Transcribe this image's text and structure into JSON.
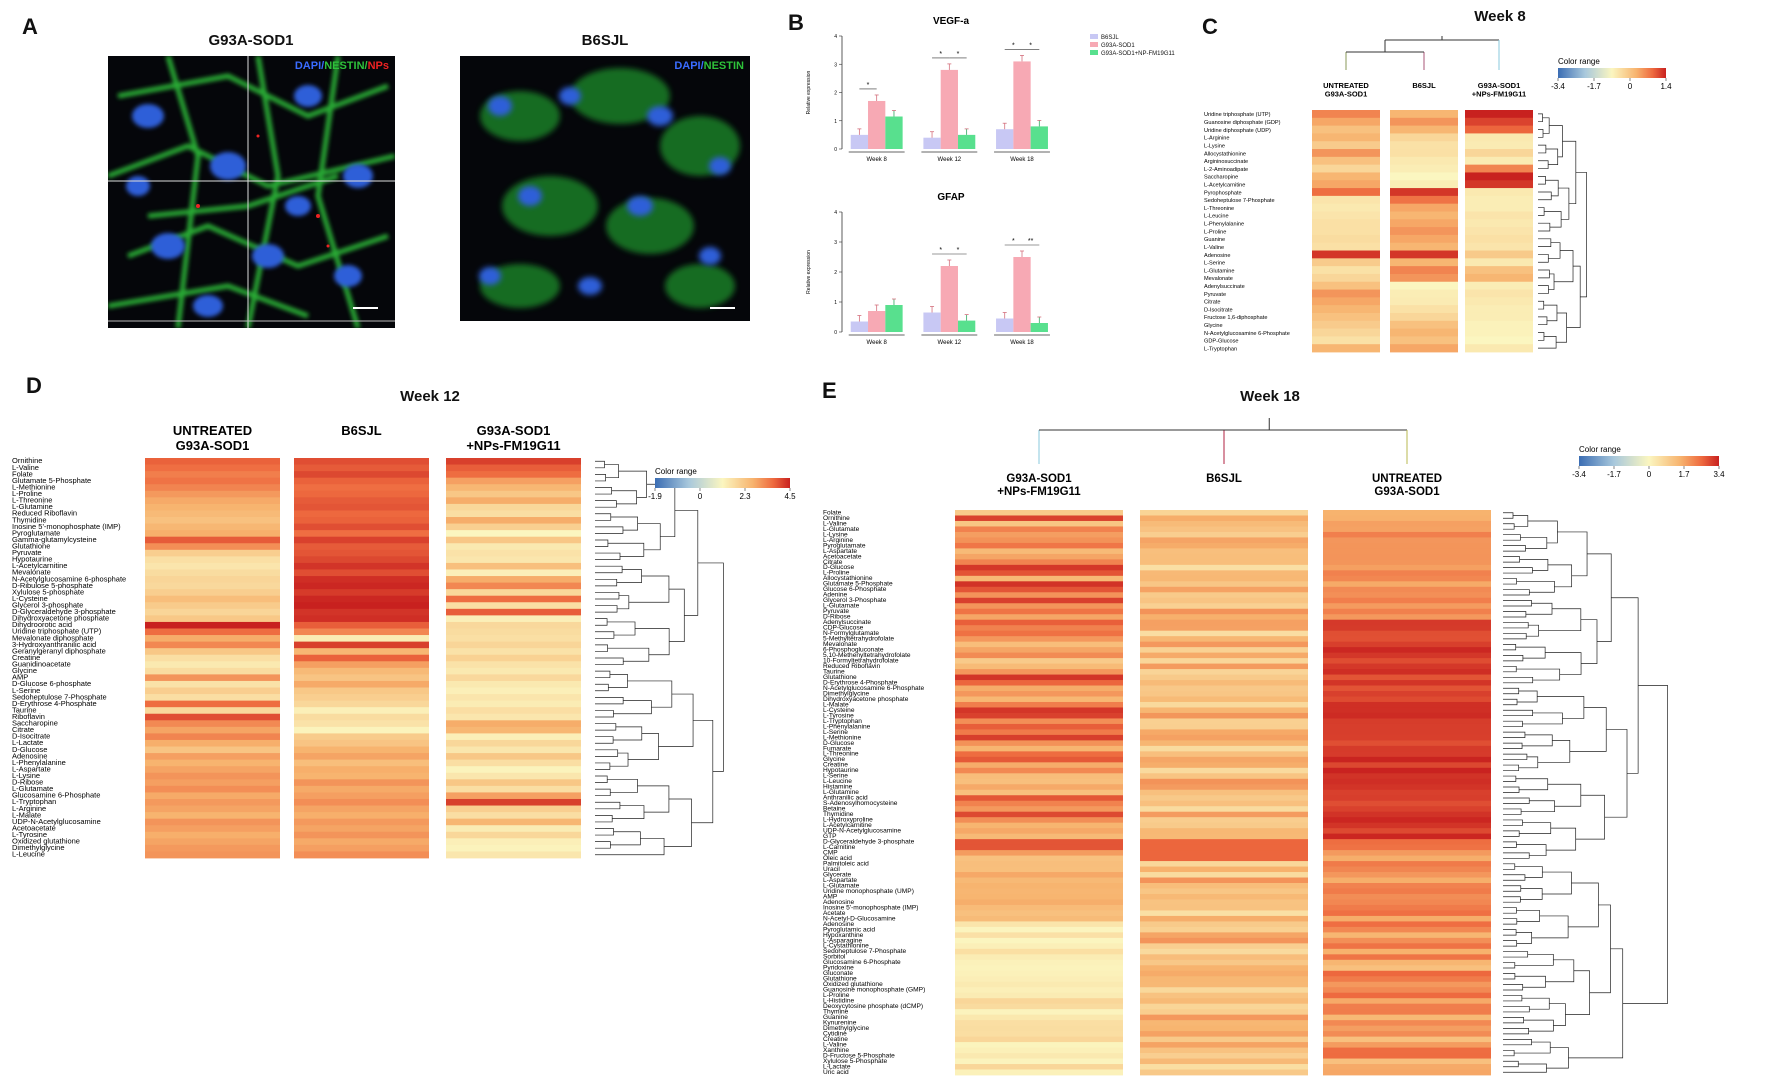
{
  "panels": {
    "a": {
      "letter": "A",
      "left_title": "G93A-SOD1",
      "right_title": "B6SJL",
      "left_stain": {
        "dapi": "DAPI",
        "sep": "/",
        "nestin": "NESTIN",
        "sep2": "/",
        "nps": "NPs"
      },
      "right_stain": {
        "dapi": "DAPI",
        "sep": "/",
        "nestin": "NESTIN"
      }
    },
    "b": {
      "letter": "B"
    },
    "c": {
      "letter": "C",
      "title": "Week 8",
      "colors": {
        "low": "#3c6fb0",
        "mid": "#fbf4be",
        "high": "#d52a26"
      }
    },
    "d": {
      "letter": "D",
      "title": "Week 12"
    },
    "e": {
      "letter": "E",
      "title": "Week 18"
    }
  },
  "chart_data": [
    {
      "type": "bar",
      "title": "VEGF-a",
      "ylabel": "Relative expression",
      "categories": [
        "Week 8",
        "Week 12",
        "Week 18"
      ],
      "series": [
        {
          "name": "B6SJL",
          "values": [
            0.5,
            0.4,
            0.7
          ],
          "color": "#c8c8f4"
        },
        {
          "name": "G93A-SOD1",
          "values": [
            1.7,
            2.8,
            3.1
          ],
          "color": "#f7a9b4"
        },
        {
          "name": "G93A-SOD1+NP-FM19G11",
          "values": [
            1.15,
            0.5,
            0.8
          ],
          "color": "#58e08e"
        }
      ],
      "ylim": [
        0,
        4
      ],
      "sig": [
        "*",
        "*",
        "*",
        "*",
        "*"
      ]
    },
    {
      "type": "bar",
      "title": "GFAP",
      "ylabel": "Relative expression",
      "categories": [
        "Week 8",
        "Week 12",
        "Week 18"
      ],
      "series": [
        {
          "name": "B6SJL",
          "values": [
            0.35,
            0.65,
            0.45
          ],
          "color": "#c8c8f4"
        },
        {
          "name": "G93A-SOD1",
          "values": [
            0.7,
            2.2,
            2.5
          ],
          "color": "#f7a9b4"
        },
        {
          "name": "G93A-SOD1+NP-FM19G11",
          "values": [
            0.9,
            0.38,
            0.3
          ],
          "color": "#58e08e"
        }
      ],
      "ylim": [
        0,
        4
      ],
      "sig": [
        "*",
        "*",
        "**"
      ]
    }
  ],
  "heatmaps": {
    "c": {
      "columns": [
        {
          "l1": "UNTREATED",
          "l2": "G93A-SOD1"
        },
        {
          "l1": "B6SJL",
          "l2": ""
        },
        {
          "l1": "G93A-SOD1",
          "l2": "+NPs-FM19G11"
        }
      ],
      "color_range": {
        "label": "Color range",
        "ticks": [
          "-3.4",
          "-1.7",
          "0",
          "1.4"
        ]
      },
      "rows": [
        "Uridine triphosphate (UTP)",
        "Guanosine diphosphate (GDP)",
        "Uridine diphosphate (UDP)",
        "L-Arginine",
        "L-Lysine",
        "Allocystathionine",
        "Argininosuccinate",
        "L-2-Aminoadipate",
        "Saccharopine",
        "L-Acetylcarnitine",
        "Pyrophosphate",
        "Sedoheptulose 7-Phosphate",
        "L-Threonine",
        "L-Leucine",
        "L-Phenylalanine",
        "L-Proline",
        "Guanine",
        "L-Valine",
        "Adenosine",
        "L-Serine",
        "L-Glutamine",
        "Mevalonate",
        "Adenylsuccinate",
        "Pyruvate",
        "Citrate",
        "D-Isocitrate",
        "Fructose 1,6-diphosphate",
        "Glycine",
        "N-Acetylglucosamine 6-Phosphate",
        "GDP-Glucose",
        "L-Tryptophan"
      ],
      "values": [
        [
          0.9,
          0.6,
          -3.4
        ],
        [
          0.7,
          0.8,
          -3.0
        ],
        [
          0.5,
          0.6,
          -2.6
        ],
        [
          0.6,
          0.3,
          -0.3
        ],
        [
          0.4,
          0.2,
          0.1
        ],
        [
          0.8,
          -0.5,
          0.3
        ],
        [
          0.5,
          -0.3,
          0.1
        ],
        [
          0.3,
          -0.2,
          0.9
        ],
        [
          0.6,
          0.0,
          1.4
        ],
        [
          0.7,
          -0.2,
          1.3
        ],
        [
          -2.5,
          1.3,
          -0.3
        ],
        [
          -0.4,
          1.0,
          -0.2
        ],
        [
          -0.3,
          0.7,
          -0.2
        ],
        [
          -0.4,
          0.6,
          -0.4
        ],
        [
          -0.5,
          0.7,
          -0.3
        ],
        [
          -0.5,
          0.8,
          -0.4
        ],
        [
          -0.6,
          0.7,
          -0.5
        ],
        [
          -0.5,
          0.6,
          -0.4
        ],
        [
          1.3,
          1.3,
          -1.0
        ],
        [
          0.4,
          0.6,
          -0.3
        ],
        [
          0.2,
          0.9,
          0.5
        ],
        [
          0.3,
          0.8,
          0.6
        ],
        [
          0.5,
          0.0,
          -0.2
        ],
        [
          0.8,
          -0.2,
          -0.4
        ],
        [
          0.7,
          0.1,
          -0.3
        ],
        [
          0.6,
          0.2,
          -0.2
        ],
        [
          0.5,
          0.3,
          -0.2
        ],
        [
          0.4,
          0.5,
          -0.1
        ],
        [
          0.3,
          0.6,
          -0.1
        ],
        [
          0.2,
          0.5,
          0.0
        ],
        [
          0.6,
          0.7,
          -0.3
        ]
      ]
    },
    "d": {
      "columns": [
        {
          "l1": "UNTREATED",
          "l2": "G93A-SOD1"
        },
        {
          "l1": "B6SJL",
          "l2": ""
        },
        {
          "l1": "G93A-SOD1",
          "l2": "+NPs-FM19G11"
        }
      ],
      "color_range": {
        "label": "Color range",
        "ticks": [
          "-1.9",
          "0",
          "2.3",
          "4.5"
        ]
      },
      "rows": [
        "Ornithine",
        "L-Valine",
        "Folate",
        "Glutamate 5-Phosphate",
        "L-Methionine",
        "L-Proline",
        "L-Threonine",
        "L-Glutamine",
        "Reduced Riboflavin",
        "Thymidine",
        "Inosine 5'-monophosphate (IMP)",
        "Pyroglutamate",
        "Gamma-glutamylcysteine",
        "Glutathione",
        "Pyruvate",
        "Hypotaurine",
        "L-Acetylcarnitine",
        "Mevalonate",
        "N-Acetylglucosamine 6-phosphate",
        "D-Ribulose 5-phosphate",
        "Xylulose 5-phosphate",
        "L-Cysteine",
        "Glycerol 3-phosphate",
        "D-Glyceraldehyde 3-phosphate",
        "Dihydroxyacetone phosphate",
        "Dihydroorotic acid",
        "Uridine triphosphate (UTP)",
        "Mevalonate diphosphate",
        "3-Hydroxyanthranilic acid",
        "Geranylgeranyl diphosphate",
        "Creatine",
        "Guanidinoacetate",
        "Glycine",
        "AMP",
        "D-Glucose 6-phosphate",
        "L-Serine",
        "Sedoheptulose 7-Phosphate",
        "D-Erythrose 4-Phosphate",
        "Taurine",
        "Riboflavin",
        "Saccharopine",
        "Citrate",
        "D-Isocitrate",
        "L-Lactate",
        "D-Glucose",
        "Adenosine",
        "L-Phenylalanine",
        "L-Aspartate",
        "L-Lysine",
        "D-Ribose",
        "L-Glutamate",
        "Glucosamine 6-Phosphate",
        "L-Tryptophan",
        "L-Arginine",
        "L-Malate",
        "UDP-N-Acetylglucosamine",
        "Acetoacetate",
        "L-Tyrosine",
        "Oxidized glutathione",
        "Dimethylglycine",
        "L-Leucine"
      ],
      "values": [
        [
          3.5,
          3.8,
          -1.7
        ],
        [
          3.3,
          3.6,
          -1.5
        ],
        [
          3.0,
          3.9,
          -1.4
        ],
        [
          3.2,
          3.5,
          -1.0
        ],
        [
          2.9,
          3.3,
          -0.8
        ],
        [
          2.5,
          3.4,
          -0.6
        ],
        [
          2.2,
          3.6,
          -0.9
        ],
        [
          2.0,
          3.7,
          -0.4
        ],
        [
          1.8,
          3.4,
          -0.3
        ],
        [
          1.6,
          3.5,
          -0.9
        ],
        [
          1.9,
          3.8,
          -0.5
        ],
        [
          2.1,
          3.3,
          0.0
        ],
        [
          3.6,
          4.0,
          -0.6
        ],
        [
          2.7,
          3.6,
          0.4
        ],
        [
          1.2,
          3.7,
          0.6
        ],
        [
          0.7,
          3.9,
          -0.2
        ],
        [
          0.5,
          4.2,
          -0.7
        ],
        [
          0.8,
          3.8,
          0.2
        ],
        [
          1.0,
          4.3,
          -0.9
        ],
        [
          0.9,
          4.4,
          -1.2
        ],
        [
          1.2,
          4.1,
          -0.4
        ],
        [
          1.7,
          4.4,
          -1.4
        ],
        [
          1.3,
          4.5,
          -0.3
        ],
        [
          1.0,
          4.2,
          -1.5
        ],
        [
          1.4,
          4.3,
          0.2
        ],
        [
          -1.9,
          -1.5,
          0.9
        ],
        [
          -1.4,
          -1.2,
          0.8
        ],
        [
          -0.9,
          0.3,
          0.7
        ],
        [
          -1.2,
          -1.7,
          1.0
        ],
        [
          -0.6,
          -0.8,
          0.6
        ],
        [
          -0.3,
          3.5,
          1.1
        ],
        [
          0.4,
          2.4,
          0.6
        ],
        [
          0.8,
          1.8,
          0.4
        ],
        [
          -1.1,
          1.5,
          0.9
        ],
        [
          0.6,
          2.2,
          0.4
        ],
        [
          1.2,
          1.4,
          0.2
        ],
        [
          -0.3,
          1.2,
          0.5
        ],
        [
          -1.4,
          -0.4,
          0.3
        ],
        [
          0.9,
          0.2,
          -0.3
        ],
        [
          3.8,
          0.8,
          -0.2
        ],
        [
          2.8,
          0.6,
          -0.9
        ],
        [
          2.3,
          0.1,
          -0.8
        ],
        [
          2.9,
          1.3,
          0.2
        ],
        [
          2.1,
          1.5,
          -0.4
        ],
        [
          1.5,
          2.0,
          -0.2
        ],
        [
          2.4,
          2.3,
          -0.6
        ],
        [
          2.0,
          1.7,
          -0.3
        ],
        [
          2.3,
          2.1,
          0.1
        ],
        [
          2.6,
          2.0,
          -0.2
        ],
        [
          2.4,
          2.6,
          -0.6
        ],
        [
          2.7,
          2.2,
          -0.3
        ],
        [
          2.2,
          2.4,
          -1.0
        ],
        [
          2.5,
          2.7,
          -1.7
        ],
        [
          2.3,
          2.3,
          -0.5
        ],
        [
          2.0,
          2.1,
          -0.3
        ],
        [
          2.6,
          2.5,
          -0.8
        ],
        [
          2.4,
          2.3,
          0.3
        ],
        [
          2.1,
          2.6,
          -0.4
        ],
        [
          2.3,
          2.2,
          0.2
        ],
        [
          2.5,
          2.4,
          0.1
        ],
        [
          2.6,
          2.7,
          -0.2
        ]
      ]
    },
    "e": {
      "columns": [
        {
          "l1": "G93A-SOD1",
          "l2": "+NPs-FM19G11"
        },
        {
          "l1": "B6SJL",
          "l2": ""
        },
        {
          "l1": "UNTREATED",
          "l2": "G93A-SOD1"
        }
      ],
      "color_range": {
        "label": "Color range",
        "ticks": [
          "-3.4",
          "-1.7",
          "0",
          "1.7",
          "3.4"
        ]
      },
      "rows": [
        "Folate",
        "Ornithine",
        "L-Valine",
        "L-Glutamate",
        "L-Lysine",
        "L-Arginine",
        "Pyroglutamate",
        "L-Aspartate",
        "Acetoacetate",
        "Citrate",
        "D-Glucose",
        "L-Proline",
        "Allocystathionine",
        "Glutamate 5-Phosphate",
        "Glucose 6-Phosphate",
        "Adenine",
        "Glycerol 3-Phosphate",
        "L-Glutamate",
        "Pyruvate",
        "D-Ribose",
        "Adenylsuccinate",
        "CDP-Glucose",
        "N-Formylglutamate",
        "5-Methyltetrahydrofolate",
        "Mevalonate",
        "6-Phosphogluconate",
        "5,10-Methenyltetrahydrofolate",
        "10-Formyltetrahydrofolate",
        "Reduced Riboflavin",
        "Taurine",
        "Glutathione",
        "D-Erythrose 4-Phosphate",
        "N-Acetylglucosamine 6-Phosphate",
        "Dimethylglycine",
        "Dihydroxyacetone phosphate",
        "L-Malate",
        "L-Cysteine",
        "L-Tyrosine",
        "L-Tryptophan",
        "L-Phenylalanine",
        "L-Serine",
        "L-Methionine",
        "D-Glucose",
        "Fumarate",
        "L-Threonine",
        "Glycine",
        "Creatine",
        "Hypotaurine",
        "L-Serine",
        "L-Leucine",
        "Histamine",
        "L-Glutamine",
        "Anthranilic acid",
        "S-Adenosylhomocysteine",
        "Betaine",
        "Thymidine",
        "L-Hydroxyproline",
        "L-Acetylcarnitine",
        "UDP-N-Acetylglucosamine",
        "GTP",
        "D-Glyceraldehyde 3-phosphate",
        "L-Carnitine",
        "CMP",
        "Oleic acid",
        "Palmitoleic acid",
        "Uracil",
        "Glycerate",
        "L-Aspartate",
        "L-Glutamate",
        "Uridine monophosphate (UMP)",
        "AMP",
        "Adenosine",
        "Inosine 5'-monophosphate (IMP)",
        "Acetate",
        "N-Acetyl-D-Glucosamine",
        "Adenosine",
        "Pyroglutamic acid",
        "Hypoxanthine",
        "L-Asparagine",
        "L-Cystathionine",
        "Sedoheptulose 7-Phosphate",
        "Sorbitol",
        "Glucosamine 6-Phosphate",
        "Pyridoxine",
        "Gluconate",
        "Glutathione",
        "Oxidized glutathione",
        "Guanosine monophosphate (GMP)",
        "L-Proline",
        "L-Histidine",
        "Deoxycytosine phosphate (dCMP)",
        "Thymine",
        "Guanine",
        "Kynurenine",
        "Dimethylglycine",
        "Cytidine",
        "Creatine",
        "L-Valine",
        "Xanthine",
        "D-Fructose 5-Phosphate",
        "Xylulose 5-Phosphate",
        "L-Lactate",
        "Uric acid"
      ]
    }
  },
  "legend_b": [
    "B6SJL",
    "G93A-SOD1",
    "G93A-SOD1+NP-FM19G11"
  ]
}
